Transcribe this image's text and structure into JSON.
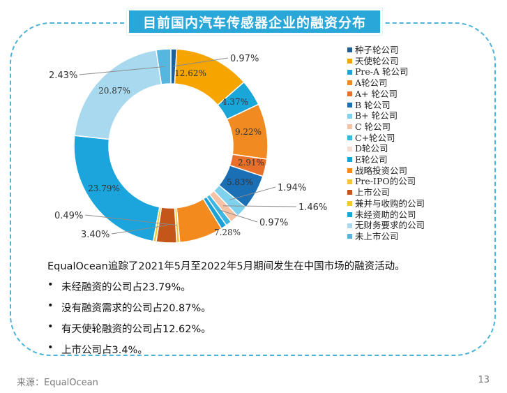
{
  "page": {
    "title": "目前国内汽车传感器企业的融资分布",
    "source": "来源：EqualOcean",
    "page_number": "13"
  },
  "summary": {
    "lead": "EqualOcean追踪了2021年5月至2022年5月期间发生在中国市场的融资活动。",
    "bullet_mark": "•",
    "bullets": [
      "未经融资的公司占23.79%。",
      "没有融资需求的公司占20.87%。",
      "有天使轮融资的公司占12.62%。",
      "上市公司占3.4%。"
    ]
  },
  "chart_data": {
    "type": "pie",
    "donut": true,
    "categories": [
      "种子轮公司",
      "天使轮公司",
      "Pre-A 轮公司",
      "A轮公司",
      "A+ 轮公司",
      "B 轮公司",
      "B+ 轮公司",
      "C 轮公司",
      "C+轮公司",
      "D轮公司",
      "E轮公司",
      "战略投资公司",
      "Pre-IPO的公司",
      "上市公司",
      "兼并与收购的公司",
      "未经资助的公司",
      "无财务要求的公司",
      "未上市公司"
    ],
    "values": [
      0.97,
      12.62,
      4.37,
      9.22,
      2.91,
      5.83,
      1.94,
      1.46,
      0.97,
      0,
      0.97,
      7.28,
      0.49,
      3.4,
      0.49,
      23.79,
      20.87,
      2.43
    ],
    "data_labels": [
      "0.97%",
      "12.62%",
      "4.37%",
      "9.22%",
      "2.91%",
      "5.83%",
      "1.94%",
      "1.46%",
      "0.97%",
      "",
      "",
      "7.28%",
      "0.49%",
      "3.40%",
      "",
      "23.79%",
      "20.87%",
      "2.43%"
    ],
    "colors": [
      "#1f5f96",
      "#f5a400",
      "#1aa6d8",
      "#f08a21",
      "#e9702a",
      "#1a6fb5",
      "#7fd2ee",
      "#f6c2a6",
      "#39b6e2",
      "#f4ddd0",
      "#1ba1d5",
      "#f28a1e",
      "#f7c33d",
      "#c4561a",
      "#f3c833",
      "#1ba5dc",
      "#a9d9ee",
      "#55b6e0"
    ],
    "legend_position": "right"
  }
}
